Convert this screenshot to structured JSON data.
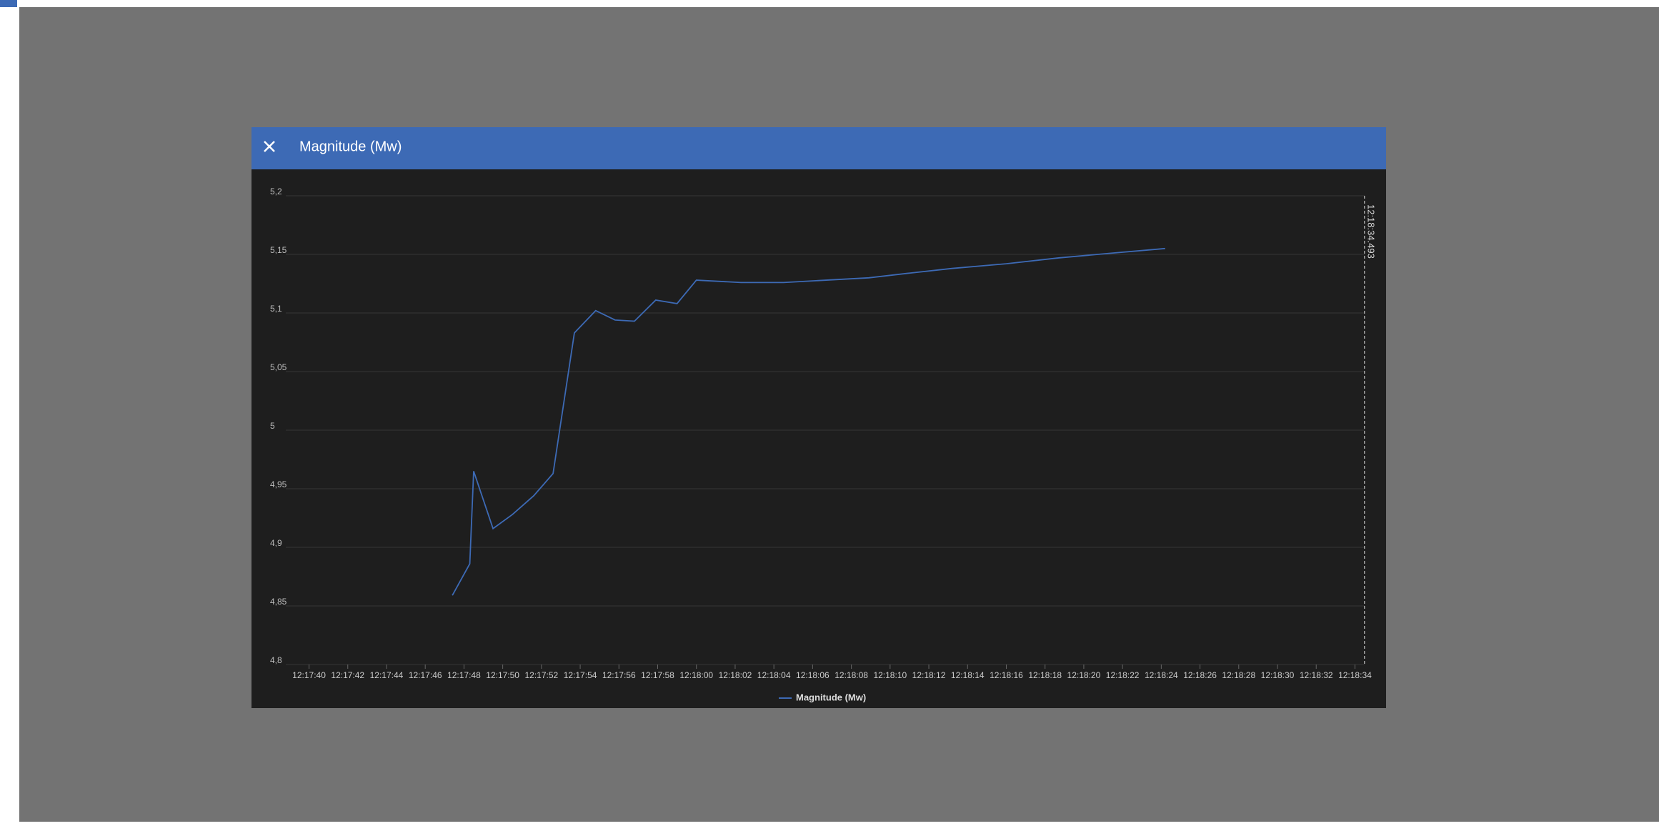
{
  "header": {
    "title": "Magnitude (Mw)"
  },
  "chart_data": {
    "type": "line",
    "x": [
      "12:17:47.4",
      "12:17:48.3",
      "12:17:48.5",
      "12:17:49.5",
      "12:17:50.5",
      "12:17:51.6",
      "12:17:52.6",
      "12:17:53.7",
      "12:17:54.8",
      "12:17:55.8",
      "12:17:56.8",
      "12:17:57.9",
      "12:17:59.0",
      "12:18:00.0",
      "12:18:02.3",
      "12:18:04.5",
      "12:18:06.7",
      "12:18:08.9",
      "12:18:11.0",
      "12:18:13.2",
      "12:18:16.0",
      "12:18:18.7",
      "12:18:21.4",
      "12:18:24.2"
    ],
    "series": [
      {
        "name": "Magnitude (Mw)",
        "color": "#3d6ab5",
        "values": [
          4.859,
          4.886,
          4.965,
          4.916,
          4.928,
          4.944,
          4.963,
          5.083,
          5.102,
          5.094,
          5.093,
          5.111,
          5.108,
          5.128,
          5.126,
          5.126,
          5.128,
          5.13,
          5.134,
          5.138,
          5.142,
          5.147,
          5.151,
          5.155
        ]
      }
    ],
    "xlim": [
      "12:17:38.8",
      "12:18:34.5"
    ],
    "xticks": [
      "12:17:40",
      "12:17:42",
      "12:17:44",
      "12:17:46",
      "12:17:48",
      "12:17:50",
      "12:17:52",
      "12:17:54",
      "12:17:56",
      "12:17:58",
      "12:18:00",
      "12:18:02",
      "12:18:04",
      "12:18:06",
      "12:18:08",
      "12:18:10",
      "12:18:12",
      "12:18:14",
      "12:18:16",
      "12:18:18",
      "12:18:20",
      "12:18:22",
      "12:18:24",
      "12:18:26",
      "12:18:28",
      "12:18:30",
      "12:18:32",
      "12:18:34"
    ],
    "ylim": [
      4.8,
      5.2
    ],
    "yticks": [
      {
        "value": 4.8,
        "label": "4,8"
      },
      {
        "value": 4.85,
        "label": "4,85"
      },
      {
        "value": 4.9,
        "label": "4,9"
      },
      {
        "value": 4.95,
        "label": "4,95"
      },
      {
        "value": 5,
        "label": "5"
      },
      {
        "value": 5.05,
        "label": "5,05"
      },
      {
        "value": 5.1,
        "label": "5,1"
      },
      {
        "value": 5.15,
        "label": "5,15"
      },
      {
        "value": 5.2,
        "label": "5,2"
      }
    ],
    "grid": true,
    "cursor": "12:18:34.493"
  }
}
